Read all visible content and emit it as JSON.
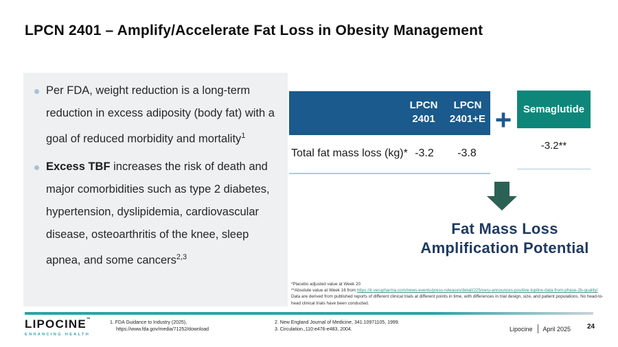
{
  "slide": {
    "title": "LPCN 2401 – Amplify/Accelerate Fat Loss in Obesity Management"
  },
  "bullets": [
    {
      "text": "Per FDA, weight reduction is a long-term reduction in excess adiposity (body fat) with a goal of reduced morbidity and mortality",
      "sup": "1"
    },
    {
      "bold": "Excess TBF",
      "text": " increases the risk of death and major comorbidities such as type 2 diabetes, hypertension, dyslipidemia, cardiovascular disease, osteoarthritis of the knee, sleep apnea, and some cancers",
      "sup": "2,3"
    }
  ],
  "comparison": {
    "columns": [
      "LPCN\n2401",
      "LPCN\n2401+E"
    ],
    "plus": "+",
    "semaglutide_label": "Semaglutide",
    "row_label": "Total fat mass loss (kg)*",
    "values": [
      "-3.2",
      "-3.8"
    ],
    "semaglutide_value": "-3.2**",
    "callout_line1": "Fat Mass Loss",
    "callout_line2": "Amplification Potential"
  },
  "footnotes": {
    "line1": "*Placebo adjusted value at Week 20",
    "line2_prefix": "**Absolute value at Week 16 from ",
    "line2_link": "https://ir.verupharma.com/news-events/press-releases/detail/225/veru-announces-positive-topline-data-from-phase-2b-quality/",
    "line3": "Data are derived from published reports of different clinical trials at different points in time, with differences in trial design, size, and patient populations. No head-to-head clinical trials have been conducted."
  },
  "footer": {
    "logo_text": "LIPOCINE",
    "logo_tm": "™",
    "logo_tagline": "ENHANCING HEALTH",
    "ref1_line1": "1. FDA Guidance to Industry (2025),",
    "ref1_line2": "https://www.fda.gov/media/71252/download",
    "ref2": "2. New England Journal of Medicine, 341:10971105, 1999.",
    "ref3": "3. Circulation.,110:e476-e483, 2004.",
    "brand": "Lipocine",
    "date": "April 2025",
    "page": "24"
  },
  "colors": {
    "header_blue": "#1a5a8c",
    "semaglutide_teal": "#0e8679",
    "arrow_teal": "#2c6156",
    "callout_navy": "#1f3a60",
    "footer_bar_teal": "#2da3a3",
    "panel_gray": "#eef0f2",
    "link_teal": "#3a9188"
  }
}
